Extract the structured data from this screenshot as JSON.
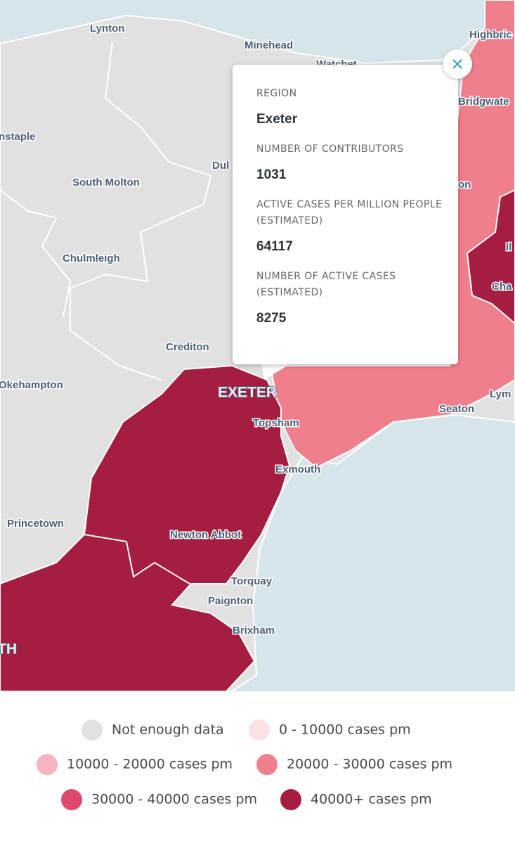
{
  "map": {
    "labels": [
      "Lynton",
      "Minehead",
      "Watchet",
      "Highbric",
      "Bridgwate",
      "nstaple",
      "South Molton",
      "Dul",
      "on",
      "Chulmleigh",
      "Il",
      "Cha",
      "Crediton",
      "Okehampton",
      "EXETER",
      "Topsham",
      "Seaton",
      "Lym",
      "Exmouth",
      "Princetown",
      "Newton Abbot",
      "Torquay",
      "Paignton",
      "Brixham",
      "TH"
    ]
  },
  "popup": {
    "fields": [
      {
        "label": "REGION",
        "value": "Exeter"
      },
      {
        "label": "NUMBER OF CONTRIBUTORS",
        "value": 1031
      },
      {
        "label": "ACTIVE CASES PER MILLION PEOPLE (ESTIMATED)",
        "value": 64117
      },
      {
        "label": "NUMBER OF ACTIVE CASES (ESTIMATED)",
        "value": 8275
      }
    ]
  },
  "legend": {
    "items": [
      {
        "label": "Not enough data",
        "color": "#e1e1e1"
      },
      {
        "label": "0 - 10000 cases pm",
        "color": "#fae1e4"
      },
      {
        "label": "10000 - 20000 cases pm",
        "color": "#f6b3c0"
      },
      {
        "label": "20000 - 30000 cases pm",
        "color": "#f07f8c"
      },
      {
        "label": "30000 - 40000 cases pm",
        "color": "#e1486c"
      },
      {
        "label": "40000+ cases pm",
        "color": "#a51d41"
      }
    ]
  }
}
